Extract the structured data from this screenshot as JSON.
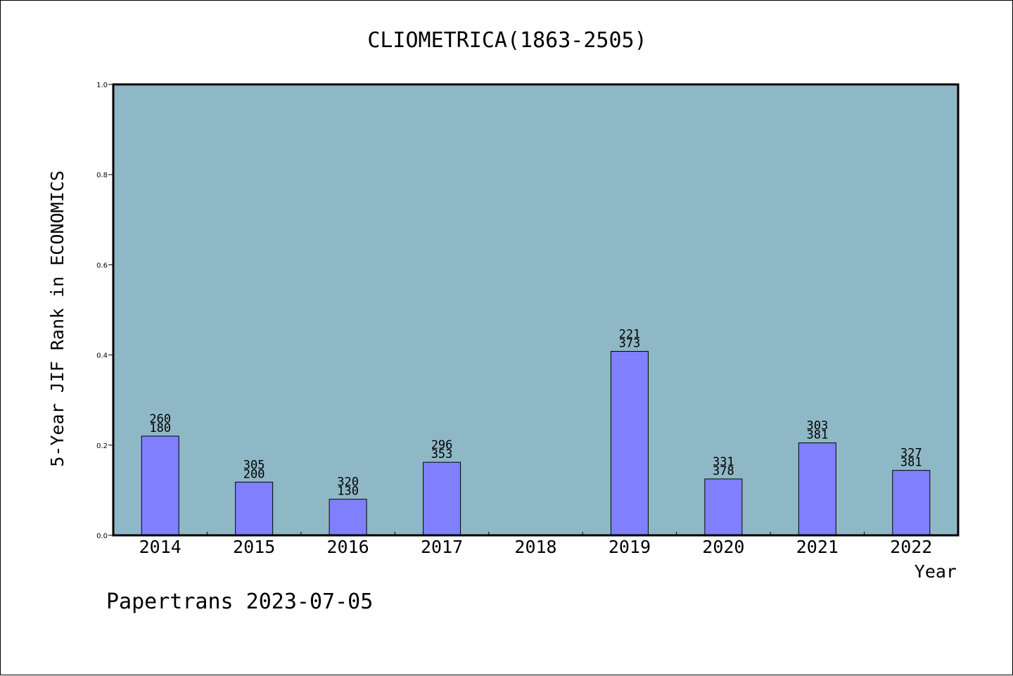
{
  "chart_data": {
    "type": "bar",
    "title": "CLIOMETRICA(1863-2505)",
    "xlabel": "Year",
    "ylabel": "5-Year JIF Rank in ECONOMICS",
    "ylim": [
      0,
      1.0
    ],
    "yticks": [
      "0.0",
      "0.2",
      "0.4",
      "0.6",
      "0.8",
      "1.0"
    ],
    "categories": [
      "2014",
      "2015",
      "2016",
      "2017",
      "2018",
      "2019",
      "2020",
      "2021",
      "2022"
    ],
    "values": [
      0.22,
      0.118,
      0.08,
      0.162,
      null,
      0.408,
      0.125,
      0.205,
      0.144
    ],
    "labels_top": [
      "260",
      "305",
      "320",
      "296",
      "",
      "221",
      "331",
      "303",
      "327"
    ],
    "labels_bottom": [
      "180",
      "200",
      "130",
      "353",
      "",
      "373",
      "378",
      "381",
      "381"
    ],
    "grid": false,
    "colors": {
      "plot_background": "#8fb8c6",
      "bar_fill": "#8080ff",
      "bar_stroke": "#000000"
    }
  },
  "footer": "Papertrans 2023-07-05"
}
